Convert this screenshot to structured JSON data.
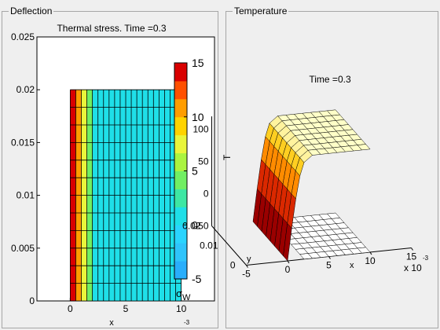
{
  "left_panel": {
    "title": "Deflection",
    "plot_title": "Thermal stress. Time =0.3",
    "x_label": "x",
    "x_exponent": "-3",
    "colorbar_label": "σ_W"
  },
  "right_panel": {
    "title": "Temperature",
    "plot_title": "Time =0.3",
    "z_label": "T",
    "x_label": "x",
    "y_label": "y",
    "x_exponent_label": "x 10",
    "x_exponent": "-3"
  },
  "chart_data": [
    {
      "type": "heatmap",
      "title": "Thermal stress. Time =0.3",
      "xlabel": "x",
      "xlabel_scale": "x 10^-3",
      "xlim": [
        -3,
        13
      ],
      "ylim": [
        0,
        0.025
      ],
      "xticks": [
        "0",
        "5",
        "10"
      ],
      "yticks": [
        "0",
        "0.005",
        "0.01",
        "0.015",
        "0.02",
        "0.025"
      ],
      "domain": {
        "x": [
          0,
          10
        ],
        "y": [
          0,
          0.02
        ]
      },
      "columns_x_start": [
        0,
        0.5,
        1.0,
        1.5,
        2.0
      ],
      "column_values": [
        15,
        11,
        8,
        4.5,
        1.5
      ],
      "background_value": 0,
      "colorbar": {
        "label": "σ_W",
        "range": [
          -5,
          15
        ],
        "ticks": [
          "-5",
          "0",
          "5",
          "10",
          "15"
        ],
        "colors": [
          "#29aefb",
          "#2fc4fb",
          "#2ad4fe",
          "#1fdfe8",
          "#3ee7a3",
          "#71ef63",
          "#aaf440",
          "#e9f53b",
          "#ffd300",
          "#ff9d00",
          "#ff5000",
          "#d90000"
        ]
      }
    },
    {
      "type": "surface",
      "title": "Time =0.3",
      "xlabel": "x",
      "ylabel": "y",
      "zlabel": "T",
      "xlabel_scale": "x 10^-3",
      "xticks": [
        "-5",
        "0",
        "5",
        "10",
        "15"
      ],
      "yticks": [
        "0",
        "0.01",
        "0.02"
      ],
      "zticks": [
        "-50",
        "0",
        "50",
        "100"
      ],
      "surface_profile": {
        "x": [
          0,
          0.5,
          1,
          1.5,
          2,
          3,
          4,
          5,
          6,
          7,
          8,
          9,
          10
        ],
        "T": [
          -50,
          0,
          45,
          80,
          100,
          110,
          110,
          110,
          110,
          110,
          110,
          110,
          110
        ]
      },
      "base_plane_T": -50
    }
  ]
}
